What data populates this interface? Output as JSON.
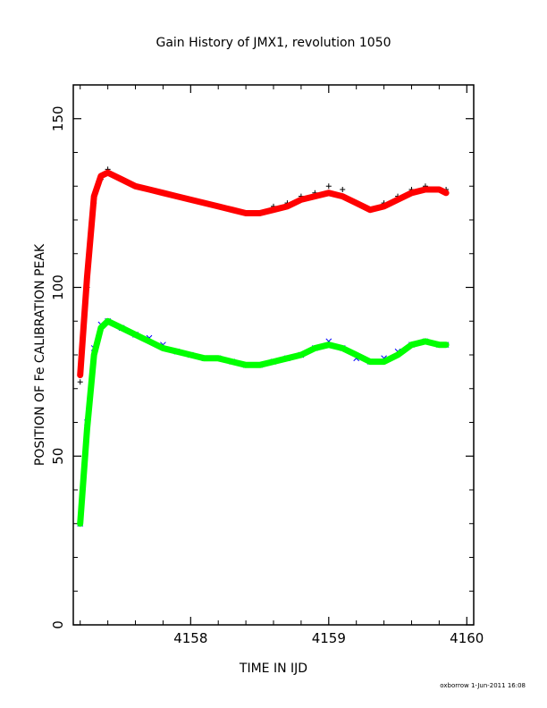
{
  "footer": "oxborrow   1-Jun-2011 16:08",
  "chart_data": {
    "type": "scatter",
    "title": "Gain History of JMX1, revolution 1050",
    "xlabel": "TIME IN IJD",
    "ylabel": "POSITION OF Fe CALIBRATION PEAK",
    "xlim": [
      4157.15,
      4160.05
    ],
    "ylim": [
      0,
      160
    ],
    "xticks": [
      4158,
      4159,
      4160
    ],
    "yticks": [
      0,
      50,
      100,
      150
    ],
    "grid": false,
    "legend": "none",
    "series": [
      {
        "marker": "plus",
        "color": "#000000",
        "x": [
          4157.2,
          4157.25,
          4157.3,
          4157.35,
          4157.4,
          4157.5,
          4157.6,
          4157.7,
          4157.8,
          4157.9,
          4158.0,
          4158.1,
          4158.2,
          4158.3,
          4158.4,
          4158.5,
          4158.6,
          4158.7,
          4158.8,
          4158.9,
          4159.0,
          4159.1,
          4159.2,
          4159.3,
          4159.4,
          4159.5,
          4159.6,
          4159.7,
          4159.8,
          4159.85
        ],
        "y": [
          72,
          100,
          125,
          132,
          135,
          132,
          130,
          129,
          128,
          127,
          126,
          125,
          124,
          123,
          122,
          122,
          124,
          125,
          127,
          128,
          130,
          129,
          125,
          123,
          125,
          127,
          129,
          130,
          129,
          129
        ]
      },
      {
        "marker": "line",
        "color": "#ff0000",
        "x": [
          4157.2,
          4157.25,
          4157.3,
          4157.35,
          4157.4,
          4157.5,
          4157.6,
          4157.7,
          4157.8,
          4157.9,
          4158.0,
          4158.1,
          4158.2,
          4158.3,
          4158.4,
          4158.5,
          4158.6,
          4158.7,
          4158.8,
          4158.9,
          4159.0,
          4159.1,
          4159.2,
          4159.3,
          4159.4,
          4159.5,
          4159.6,
          4159.7,
          4159.8,
          4159.85
        ],
        "y": [
          74,
          103,
          127,
          133,
          134,
          132,
          130,
          129,
          128,
          127,
          126,
          125,
          124,
          123,
          122,
          122,
          123,
          124,
          126,
          127,
          128,
          127,
          125,
          123,
          124,
          126,
          128,
          129,
          129,
          128
        ]
      },
      {
        "marker": "cross",
        "color": "#0000ff",
        "x": [
          4157.2,
          4157.25,
          4157.3,
          4157.35,
          4157.4,
          4157.5,
          4157.6,
          4157.7,
          4157.8,
          4157.9,
          4158.0,
          4158.1,
          4158.2,
          4158.3,
          4158.4,
          4158.5,
          4158.6,
          4158.7,
          4158.8,
          4158.9,
          4159.0,
          4159.1,
          4159.2,
          4159.3,
          4159.4,
          4159.5,
          4159.6,
          4159.7,
          4159.8,
          4159.85
        ],
        "y": [
          30,
          60,
          82,
          89,
          90,
          88,
          86,
          85,
          83,
          81,
          80,
          79,
          79,
          78,
          77,
          77,
          78,
          79,
          80,
          82,
          84,
          82,
          79,
          78,
          79,
          81,
          83,
          84,
          83,
          83
        ]
      },
      {
        "marker": "line",
        "color": "#00ff00",
        "x": [
          4157.2,
          4157.25,
          4157.3,
          4157.35,
          4157.4,
          4157.5,
          4157.6,
          4157.7,
          4157.8,
          4157.9,
          4158.0,
          4158.1,
          4158.2,
          4158.3,
          4158.4,
          4158.5,
          4158.6,
          4158.7,
          4158.8,
          4158.9,
          4159.0,
          4159.1,
          4159.2,
          4159.3,
          4159.4,
          4159.5,
          4159.6,
          4159.7,
          4159.8,
          4159.85
        ],
        "y": [
          30,
          58,
          80,
          88,
          90,
          88,
          86,
          84,
          82,
          81,
          80,
          79,
          79,
          78,
          77,
          77,
          78,
          79,
          80,
          82,
          83,
          82,
          80,
          78,
          78,
          80,
          83,
          84,
          83,
          83
        ]
      }
    ]
  }
}
